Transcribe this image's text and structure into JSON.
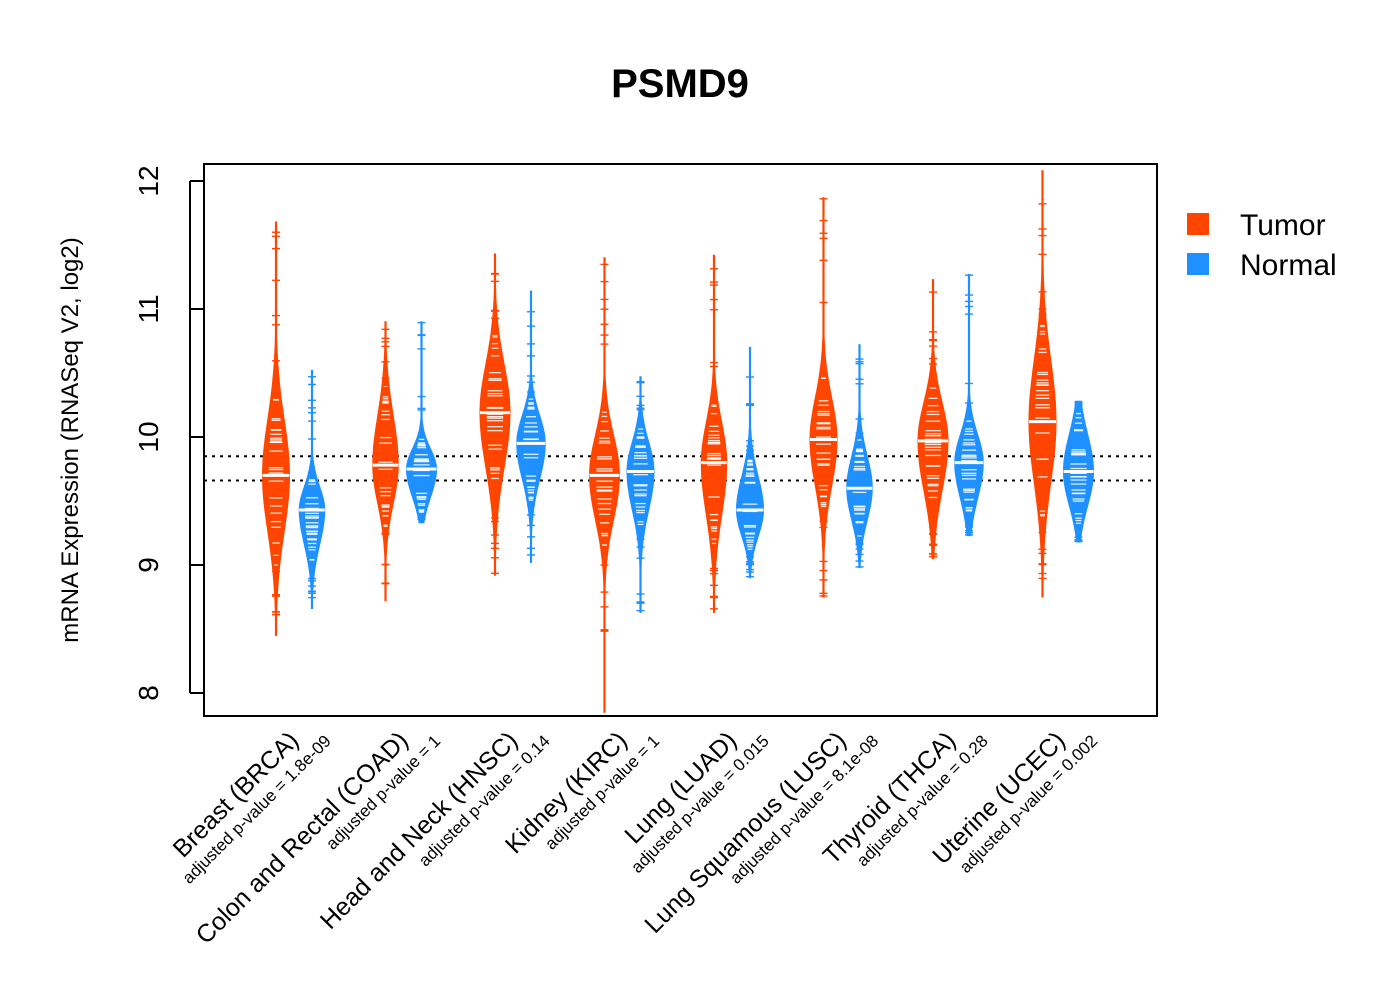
{
  "chart_data": {
    "type": "violin",
    "title": "PSMD9",
    "ylabel": "mRNA Expression (RNASeq V2, log2)",
    "ylim": [
      7.85,
      12.15
    ],
    "yticks": [
      8,
      9,
      10,
      11,
      12
    ],
    "reference_lines": [
      9.85,
      9.66
    ],
    "legend": {
      "position": "top-right",
      "items": [
        {
          "label": "Tumor",
          "color": "#FF4500"
        },
        {
          "label": "Normal",
          "color": "#1E90FF"
        }
      ]
    },
    "groups": [
      {
        "category": "Breast (BRCA)",
        "pvalue_text": "adjusted p-value = 1.8e-09",
        "tumor": {
          "median": 9.7,
          "min": 8.45,
          "max": 11.68,
          "core_low": 9.0,
          "core_high": 10.4,
          "width": 0.9
        },
        "normal": {
          "median": 9.43,
          "min": 8.66,
          "max": 10.52,
          "core_low": 9.0,
          "core_high": 9.72,
          "width": 0.85
        }
      },
      {
        "category": "Colon and Rectal (COAD)",
        "pvalue_text": "adjusted p-value = 1",
        "tumor": {
          "median": 9.78,
          "min": 8.72,
          "max": 10.9,
          "core_low": 9.3,
          "core_high": 10.4,
          "width": 0.85
        },
        "normal": {
          "median": 9.75,
          "min": 9.33,
          "max": 10.9,
          "core_low": 9.4,
          "core_high": 10.0,
          "width": 1.0
        }
      },
      {
        "category": "Head and Neck (HNSC)",
        "pvalue_text": "adjusted p-value = 0.14",
        "tumor": {
          "median": 10.19,
          "min": 8.92,
          "max": 11.43,
          "core_low": 9.5,
          "core_high": 10.8,
          "width": 1.0
        },
        "normal": {
          "median": 9.95,
          "min": 9.02,
          "max": 11.14,
          "core_low": 9.5,
          "core_high": 10.3,
          "width": 0.95
        }
      },
      {
        "category": "Kidney (KIRC)",
        "pvalue_text": "adjusted p-value = 1",
        "tumor": {
          "median": 9.7,
          "min": 7.85,
          "max": 11.4,
          "core_low": 9.15,
          "core_high": 10.2,
          "width": 1.0
        },
        "normal": {
          "median": 9.73,
          "min": 8.63,
          "max": 10.47,
          "core_low": 9.25,
          "core_high": 10.1,
          "width": 0.9
        }
      },
      {
        "category": "Lung (LUAD)",
        "pvalue_text": "adjusted p-value = 0.015",
        "tumor": {
          "median": 9.8,
          "min": 8.63,
          "max": 11.42,
          "core_low": 9.15,
          "core_high": 10.3,
          "width": 0.85
        },
        "normal": {
          "median": 9.43,
          "min": 8.9,
          "max": 10.7,
          "core_low": 9.1,
          "core_high": 9.85,
          "width": 0.9
        }
      },
      {
        "category": "Lung Squamous (LUSC)",
        "pvalue_text": "adjusted p-value = 8.1e-08",
        "tumor": {
          "median": 9.98,
          "min": 8.75,
          "max": 11.87,
          "core_low": 9.4,
          "core_high": 10.5,
          "width": 0.9
        },
        "normal": {
          "median": 9.6,
          "min": 8.98,
          "max": 10.72,
          "core_low": 9.2,
          "core_high": 10.0,
          "width": 0.85
        }
      },
      {
        "category": "Thyroid (THCA)",
        "pvalue_text": "adjusted p-value = 0.28",
        "tumor": {
          "median": 9.97,
          "min": 9.05,
          "max": 11.23,
          "core_low": 9.35,
          "core_high": 10.45,
          "width": 1.0
        },
        "normal": {
          "median": 9.8,
          "min": 9.23,
          "max": 11.27,
          "core_low": 9.35,
          "core_high": 10.15,
          "width": 0.95
        }
      },
      {
        "category": "Uterine (UCEC)",
        "pvalue_text": "adjusted p-value = 0.002",
        "tumor": {
          "median": 10.12,
          "min": 8.75,
          "max": 12.08,
          "core_low": 9.35,
          "core_high": 10.9,
          "width": 0.9
        },
        "normal": {
          "median": 9.73,
          "min": 9.18,
          "max": 10.28,
          "core_low": 9.3,
          "core_high": 10.2,
          "width": 1.0
        }
      }
    ]
  }
}
